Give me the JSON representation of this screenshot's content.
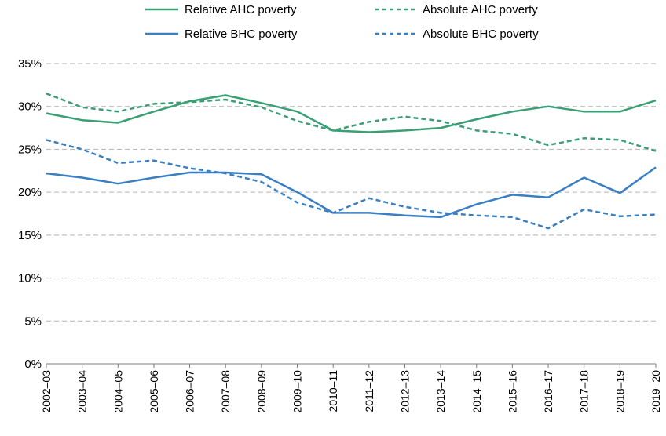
{
  "chart_data": {
    "type": "line",
    "title": "",
    "xlabel": "",
    "ylabel": "",
    "ylim": [
      0,
      35
    ],
    "yticks": [
      0,
      5,
      10,
      15,
      20,
      25,
      30,
      35
    ],
    "ytick_format": "percent",
    "grid": "horizontal-dashed",
    "legend_position": "top",
    "categories": [
      "2002–03",
      "2003–04",
      "2004–05",
      "2005–06",
      "2006–07",
      "2007–08",
      "2008–09",
      "2009–10",
      "2010–11",
      "2011–12",
      "2012–13",
      "2013–14",
      "2014–15",
      "2015–16",
      "2016–17",
      "2017–18",
      "2018–19",
      "2019–20"
    ],
    "series": [
      {
        "name": "Relative AHC poverty",
        "color": "#3a9f74",
        "style": "solid",
        "values": [
          29.2,
          28.4,
          28.1,
          29.4,
          30.6,
          31.3,
          30.4,
          29.4,
          27.2,
          27.0,
          27.2,
          27.5,
          28.5,
          29.4,
          30.0,
          29.4,
          29.4,
          30.7
        ]
      },
      {
        "name": "Absolute AHC poverty",
        "color": "#3a9f74",
        "style": "dashed",
        "values": [
          31.5,
          29.9,
          29.4,
          30.3,
          30.5,
          30.8,
          29.9,
          28.3,
          27.2,
          28.2,
          28.8,
          28.3,
          27.2,
          26.8,
          25.5,
          26.3,
          26.1,
          24.8
        ]
      },
      {
        "name": "Relative BHC poverty",
        "color": "#3a7fc3",
        "style": "solid",
        "values": [
          22.2,
          21.7,
          21.0,
          21.7,
          22.3,
          22.3,
          22.1,
          20.0,
          17.6,
          17.6,
          17.3,
          17.1,
          18.6,
          19.7,
          19.4,
          21.7,
          19.9,
          22.9
        ]
      },
      {
        "name": "Absolute BHC poverty",
        "color": "#3a7fc3",
        "style": "dashed",
        "values": [
          26.1,
          25.0,
          23.4,
          23.7,
          22.8,
          22.2,
          21.2,
          18.8,
          17.6,
          19.3,
          18.3,
          17.6,
          17.3,
          17.1,
          15.8,
          18.0,
          17.2,
          17.4
        ]
      }
    ]
  }
}
